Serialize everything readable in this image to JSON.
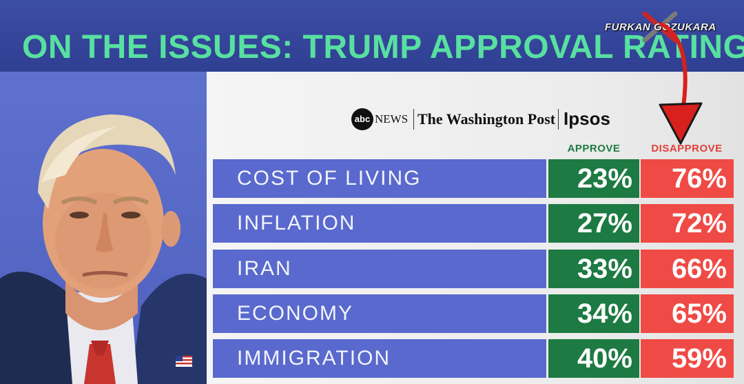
{
  "header": {
    "title": "ON THE ISSUES: TRUMP APPROVAL RATINGS"
  },
  "watermark": {
    "text": "FURKAN GOZUKARA"
  },
  "sources": {
    "abc_mark": "abc",
    "abc_news": "NEWS",
    "wapo": "The Washington Post",
    "ipsos": "Ipsos"
  },
  "columns": {
    "approve": "APPROVE",
    "disapprove": "DISAPPROVE"
  },
  "rows": [
    {
      "issue": "COST OF LIVING",
      "approve": "23%",
      "disapprove": "76%"
    },
    {
      "issue": "INFLATION",
      "approve": "27%",
      "disapprove": "72%"
    },
    {
      "issue": "IRAN",
      "approve": "33%",
      "disapprove": "66%"
    },
    {
      "issue": "ECONOMY",
      "approve": "34%",
      "disapprove": "65%"
    },
    {
      "issue": "IMMIGRATION",
      "approve": "40%",
      "disapprove": "59%"
    }
  ],
  "colors": {
    "title": "#58e0a0",
    "label_bg": "#5a69cd",
    "approve_bg": "#1d7a42",
    "disapprove_bg": "#ef4a45",
    "arrow": "#d8201c"
  },
  "icons": [
    "red-arrow-icon",
    "x-logo-icon",
    "us-flag-pin-icon"
  ]
}
